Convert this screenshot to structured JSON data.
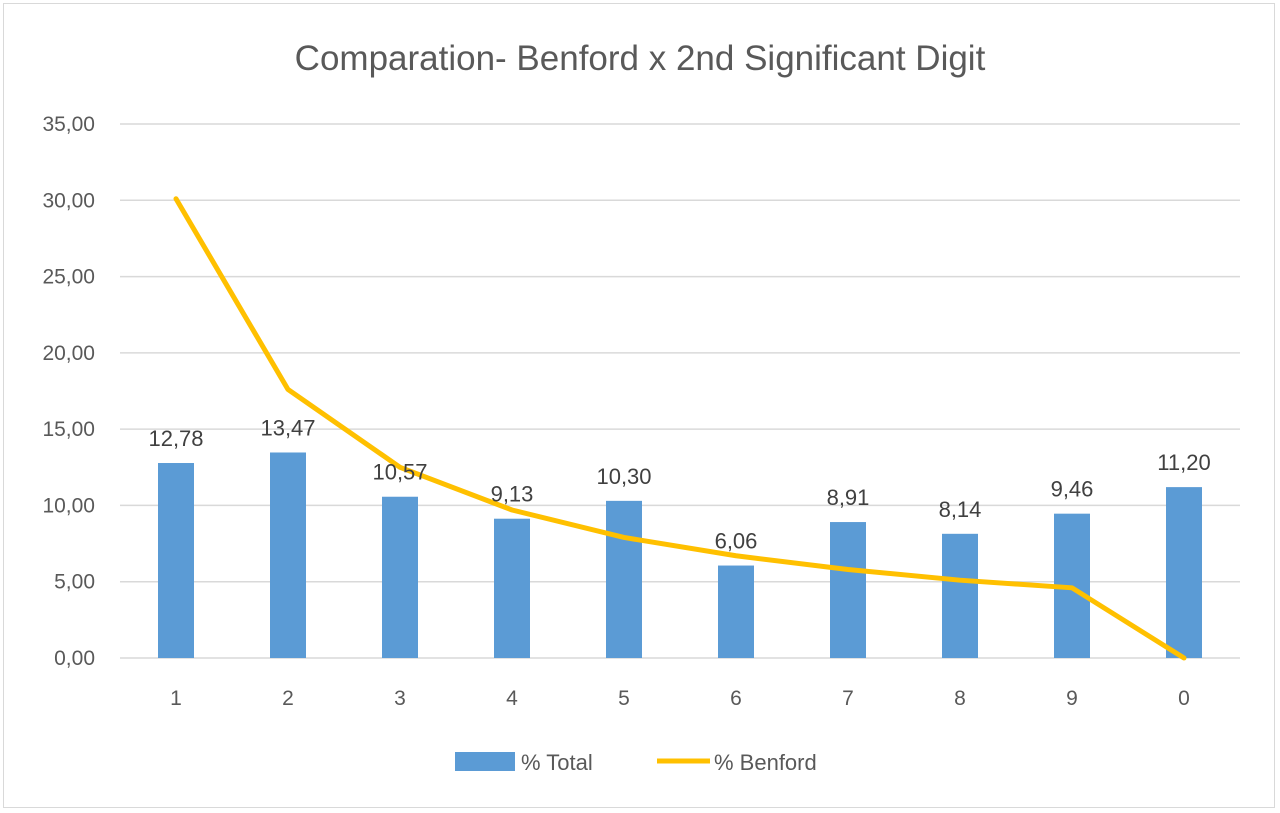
{
  "chart_data": {
    "type": "bar",
    "title": "Comparation- Benford x 2nd Significant Digit",
    "categories": [
      "1",
      "2",
      "3",
      "4",
      "5",
      "6",
      "7",
      "8",
      "9",
      "0"
    ],
    "series": [
      {
        "name": "% Total",
        "type": "bar",
        "color": "#5b9bd5",
        "values": [
          12.78,
          13.47,
          10.57,
          9.13,
          10.3,
          6.06,
          8.91,
          8.14,
          9.46,
          11.2
        ],
        "labels": [
          "12,78",
          "13,47",
          "10,57",
          "9,13",
          "10,30",
          "6,06",
          "8,91",
          "8,14",
          "9,46",
          "11,20"
        ]
      },
      {
        "name": "% Benford",
        "type": "line",
        "color": "#ffc000",
        "values": [
          30.1,
          17.6,
          12.5,
          9.7,
          7.9,
          6.7,
          5.8,
          5.1,
          4.6,
          0.0
        ]
      }
    ],
    "ylim": [
      0,
      35
    ],
    "yticks": [
      "0,00",
      "5,00",
      "10,00",
      "15,00",
      "20,00",
      "25,00",
      "30,00",
      "35,00"
    ],
    "grid": true,
    "legend": "bottom"
  }
}
